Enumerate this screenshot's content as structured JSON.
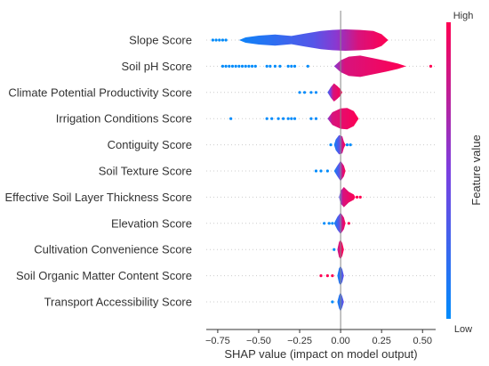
{
  "chart_data": {
    "type": "violin",
    "xlabel": "SHAP value (impact on model output)",
    "xlim": [
      -0.82,
      0.58
    ],
    "xticks": [
      -0.75,
      -0.5,
      -0.25,
      0.0,
      0.25,
      0.5
    ],
    "xtick_labels": [
      "−0.75",
      "−0.50",
      "−0.25",
      "0.00",
      "0.25",
      "0.50"
    ],
    "features": [
      "Slope Score",
      "Soil pH Score",
      "Climate Potential Productivity Score",
      "Irrigation Conditions Score",
      "Contiguity Score",
      "Soil Texture Score",
      "Effective Soil Layer Thickness Score",
      "Elevation Score",
      "Cultivation Convenience Score",
      "Soil Organic Matter Content Score",
      "Transport Accessibility Score"
    ],
    "violins": [
      {
        "profile": [
          [
            -0.62,
            0.0
          ],
          [
            -0.58,
            0.25
          ],
          [
            -0.5,
            0.42
          ],
          [
            -0.4,
            0.52
          ],
          [
            -0.3,
            0.38
          ],
          [
            -0.22,
            0.6
          ],
          [
            -0.12,
            0.85
          ],
          [
            -0.05,
            0.95
          ],
          [
            0.03,
            1.0
          ],
          [
            0.12,
            0.95
          ],
          [
            0.2,
            0.85
          ],
          [
            0.25,
            0.55
          ],
          [
            0.29,
            0.0
          ]
        ],
        "low_dots": [
          -0.78,
          -0.76,
          -0.74,
          -0.72,
          -0.7
        ],
        "high_dots": [],
        "color_split": -0.03
      },
      {
        "profile": [
          [
            -0.04,
            0.0
          ],
          [
            0.0,
            0.55
          ],
          [
            0.05,
            0.9
          ],
          [
            0.12,
            1.0
          ],
          [
            0.2,
            0.75
          ],
          [
            0.28,
            0.5
          ],
          [
            0.35,
            0.25
          ],
          [
            0.4,
            0.0
          ]
        ],
        "low_dots": [
          -0.72,
          -0.7,
          -0.68,
          -0.66,
          -0.64,
          -0.62,
          -0.6,
          -0.58,
          -0.56,
          -0.54,
          -0.52,
          -0.45,
          -0.43,
          -0.4,
          -0.37,
          -0.32,
          -0.3,
          -0.28,
          -0.2
        ],
        "high_dots": [
          0.55
        ],
        "color_split": -0.06
      },
      {
        "profile": [
          [
            -0.08,
            0.0
          ],
          [
            -0.06,
            0.5
          ],
          [
            -0.04,
            0.85
          ],
          [
            -0.02,
            0.6
          ],
          [
            0.0,
            0.3
          ],
          [
            0.01,
            0.0
          ]
        ],
        "low_dots": [
          -0.25,
          -0.22,
          -0.18,
          -0.15
        ],
        "high_dots": [],
        "color_split": -0.06
      },
      {
        "profile": [
          [
            -0.08,
            0.0
          ],
          [
            -0.05,
            0.6
          ],
          [
            0.0,
            0.95
          ],
          [
            0.04,
            1.0
          ],
          [
            0.08,
            0.7
          ],
          [
            0.11,
            0.0
          ]
        ],
        "low_dots": [
          -0.67,
          -0.45,
          -0.42,
          -0.38,
          -0.35,
          -0.32,
          -0.3,
          -0.28,
          -0.18,
          -0.15
        ],
        "high_dots": [],
        "color_split": -0.08
      },
      {
        "profile": [
          [
            -0.04,
            0.0
          ],
          [
            -0.03,
            0.5
          ],
          [
            -0.01,
            0.9
          ],
          [
            0.01,
            0.8
          ],
          [
            0.02,
            0.3
          ],
          [
            0.03,
            0.0
          ]
        ],
        "low_dots": [
          -0.06,
          0.04,
          0.06
        ],
        "high_dots": [],
        "color_split": 0.0
      },
      {
        "profile": [
          [
            -0.04,
            0.0
          ],
          [
            -0.02,
            0.5
          ],
          [
            0.0,
            0.95
          ],
          [
            0.02,
            0.5
          ],
          [
            0.03,
            0.0
          ]
        ],
        "low_dots": [
          -0.15,
          -0.12,
          -0.08
        ],
        "high_dots": [],
        "color_split": 0.0
      },
      {
        "profile": [
          [
            -0.01,
            0.0
          ],
          [
            0.0,
            0.6
          ],
          [
            0.02,
            0.95
          ],
          [
            0.05,
            0.5
          ],
          [
            0.08,
            0.25
          ],
          [
            0.09,
            0.0
          ]
        ],
        "low_dots": [],
        "high_dots": [
          0.1,
          0.12
        ],
        "color_split": 0.0
      },
      {
        "profile": [
          [
            -0.04,
            0.0
          ],
          [
            -0.02,
            0.6
          ],
          [
            0.0,
            1.0
          ],
          [
            0.02,
            0.55
          ],
          [
            0.03,
            0.0
          ]
        ],
        "low_dots": [
          -0.1,
          -0.07,
          -0.05
        ],
        "high_dots": [
          0.05
        ],
        "color_split": 0.0
      },
      {
        "profile": [
          [
            -0.02,
            0.0
          ],
          [
            -0.01,
            0.7
          ],
          [
            0.0,
            0.9
          ],
          [
            0.01,
            0.6
          ],
          [
            0.02,
            0.0
          ]
        ],
        "low_dots": [
          -0.04
        ],
        "high_dots": [],
        "color_split": -0.05
      },
      {
        "profile": [
          [
            -0.02,
            0.0
          ],
          [
            -0.01,
            0.7
          ],
          [
            0.0,
            0.9
          ],
          [
            0.01,
            0.6
          ],
          [
            0.02,
            0.0
          ]
        ],
        "low_dots": [],
        "high_dots": [
          -0.12,
          -0.08,
          -0.05
        ],
        "color_split": 0.05
      },
      {
        "profile": [
          [
            -0.02,
            0.0
          ],
          [
            -0.01,
            0.6
          ],
          [
            0.0,
            0.9
          ],
          [
            0.01,
            0.5
          ],
          [
            0.02,
            0.0
          ]
        ],
        "low_dots": [
          -0.05
        ],
        "high_dots": [],
        "color_split": 0.05
      }
    ],
    "colorbar": {
      "label": "Feature value",
      "high": "High",
      "low": "Low",
      "low_color": "#008bfb",
      "mid_color": "#7b3fe0",
      "high_color": "#ff0052"
    }
  }
}
